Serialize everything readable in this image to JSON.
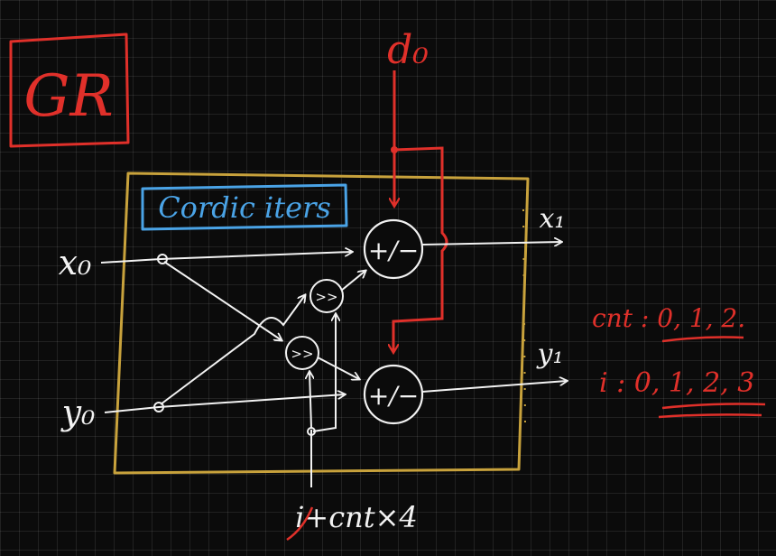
{
  "title_box": {
    "text": "GR"
  },
  "inputs": {
    "x0": "x₀",
    "y0": "y₀",
    "d0": "d₀"
  },
  "outputs": {
    "x1": "x₁",
    "y1": "y₁"
  },
  "block": {
    "label": "Cordic iters"
  },
  "adders": {
    "top": "+/−",
    "bottom": "+/−"
  },
  "shifters": {
    "top": ">>",
    "bottom": ">>"
  },
  "index_expr": "i+cnt×4",
  "notes": {
    "cnt": "cnt : 0, 1, 2.",
    "i": "i : 0, 1, 2, 3"
  },
  "colors": {
    "red": "#e0302a",
    "white": "#f2f2f2",
    "blue": "#4aa3e6",
    "gold": "#c8a23c"
  }
}
